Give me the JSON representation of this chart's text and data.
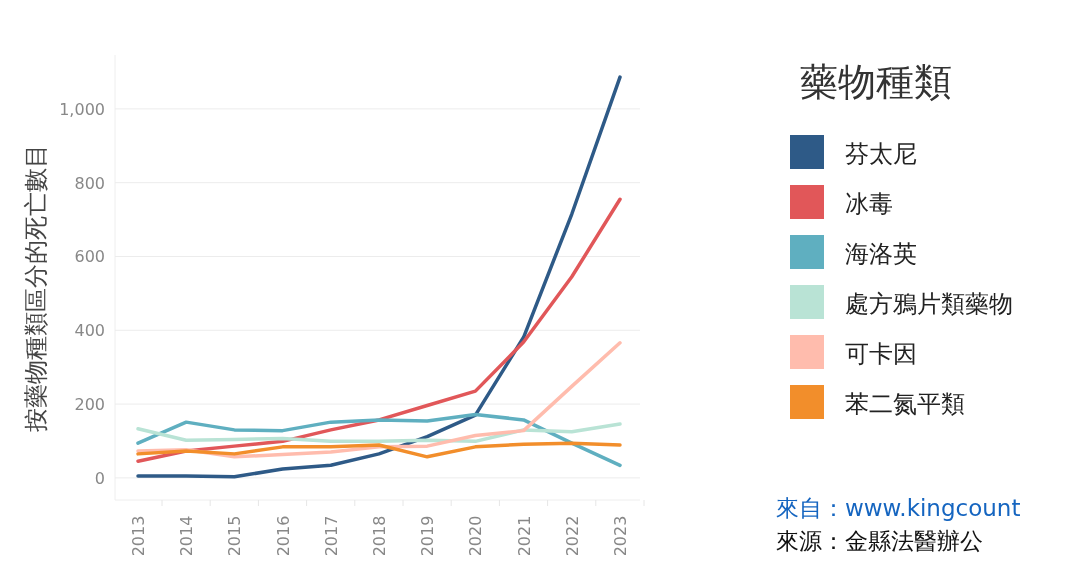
{
  "chart_data": {
    "type": "line",
    "ylabel": "按藥物種類區分的死亡數目",
    "legend_title": "藥物種類",
    "categories": [
      "2013",
      "2014",
      "2015",
      "2016",
      "2017",
      "2018",
      "2019",
      "2020",
      "2021",
      "2022",
      "2023"
    ],
    "ylim": [
      -60,
      1146
    ],
    "yticks": [
      0,
      200,
      400,
      600,
      800,
      {
        "value": 1000,
        "label": "1,000"
      }
    ],
    "grid": "y",
    "legend": "right",
    "line_style": "solid",
    "marker": "none",
    "series": [
      {
        "name": "芬太尼",
        "color": "#2e5a87",
        "values": [
          5,
          5,
          3,
          24,
          34,
          65,
          112,
          170,
          381,
          715,
          1086
        ]
      },
      {
        "name": "冰毒",
        "color": "#e15759",
        "values": [
          45,
          73,
          86,
          99,
          130,
          157,
          196,
          235,
          368,
          545,
          755
        ]
      },
      {
        "name": "海洛英",
        "color": "#5fafc0",
        "values": [
          94,
          151,
          130,
          128,
          151,
          157,
          154,
          172,
          157,
          94,
          34
        ]
      },
      {
        "name": "處方鴉片類藥物",
        "color": "#b9e3d5",
        "values": [
          133,
          102,
          104,
          107,
          99,
          99,
          102,
          99,
          130,
          125,
          146
        ]
      },
      {
        "name": "可卡因",
        "color": "#ffbcad",
        "values": [
          73,
          76,
          57,
          63,
          70,
          84,
          86,
          115,
          128,
          248,
          366
        ]
      },
      {
        "name": "苯二氮平類",
        "color": "#f28e2b",
        "values": [
          65,
          73,
          65,
          84,
          84,
          89,
          57,
          84,
          91,
          94,
          89
        ]
      }
    ],
    "annotations": [
      "來自：www.kingcount",
      "來源：金縣法醫辦公"
    ]
  }
}
